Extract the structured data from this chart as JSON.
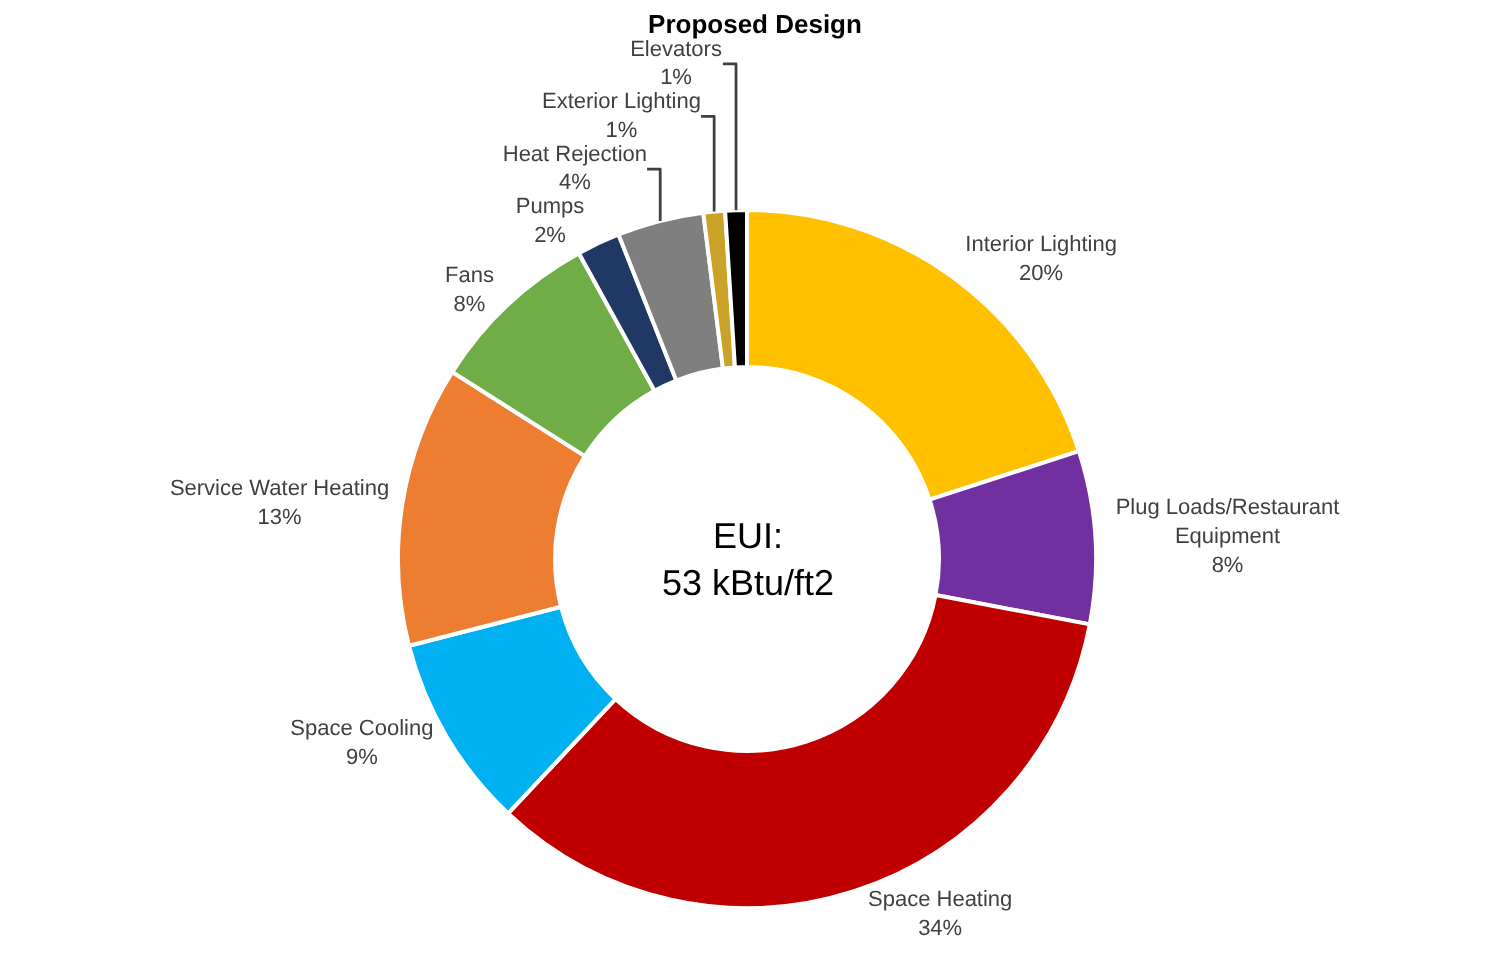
{
  "chart_data": {
    "type": "donut",
    "title": "Proposed Design",
    "categories": [
      "Interior Lighting",
      "Plug Loads/Restaurant Equipment",
      "Space Heating",
      "Space Cooling",
      "Service Water Heating",
      "Fans",
      "Pumps",
      "Heat Rejection",
      "Exterior Lighting",
      "Elevators"
    ],
    "values": [
      20,
      8,
      34,
      9,
      13,
      8,
      2,
      4,
      1,
      1
    ],
    "value_labels": [
      "20%",
      "8%",
      "34%",
      "9%",
      "13%",
      "8%",
      "2%",
      "4%",
      "1%",
      "1%"
    ],
    "colors": [
      "#ffc000",
      "#7030a0",
      "#c00000",
      "#00b0f0",
      "#ed7d31",
      "#70ad47",
      "#1f3864",
      "#7f7f7f",
      "#c9a227",
      "#000000"
    ],
    "annotations": [
      "EUI:\n53 kBtu/ft2"
    ],
    "legend": false
  }
}
